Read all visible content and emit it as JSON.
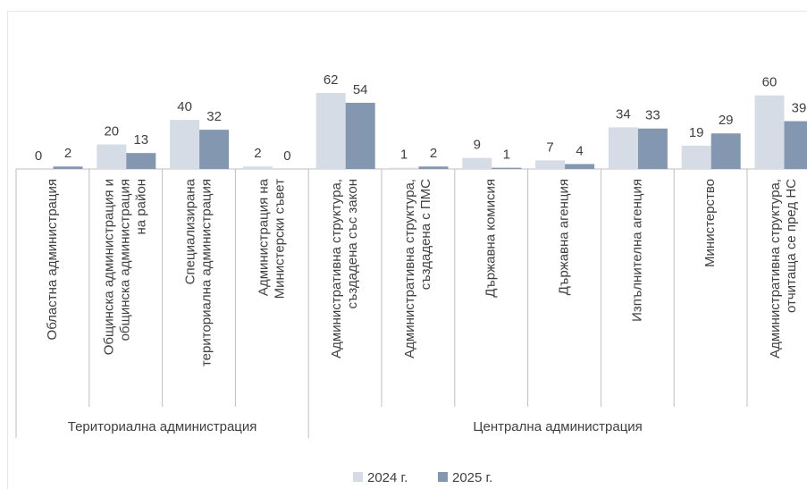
{
  "chart_data": {
    "type": "bar",
    "groups": [
      {
        "name": "Териториална администрация",
        "categories": [
          [
            "Областна администрация"
          ],
          [
            "Общинска администрация и",
            "общинска администрация",
            "на район"
          ],
          [
            "Специализирана",
            "териториална администрация"
          ],
          [
            "Администрация на",
            "Министерски съвет"
          ]
        ]
      },
      {
        "name": "Централна администрация",
        "categories": [
          [
            "Административна структура,",
            "създадена със закон"
          ],
          [
            "Административна структура,",
            "създадена с ПМС"
          ],
          [
            "Държавна комисия"
          ],
          [
            "Държавна агенция"
          ],
          [
            "Изпълнителна агенция"
          ],
          [
            "Министерство"
          ],
          [
            "Административна структура,",
            "отчитаща се пред НС"
          ]
        ]
      }
    ],
    "series": [
      {
        "name": "2024 г.",
        "color": "#d6dce5",
        "values": [
          0,
          20,
          40,
          2,
          62,
          1,
          9,
          7,
          34,
          19,
          60
        ]
      },
      {
        "name": "2025 г.",
        "color": "#8497b0",
        "values": [
          2,
          13,
          32,
          0,
          54,
          2,
          1,
          4,
          33,
          29,
          39
        ]
      }
    ],
    "legend": "bottom"
  }
}
